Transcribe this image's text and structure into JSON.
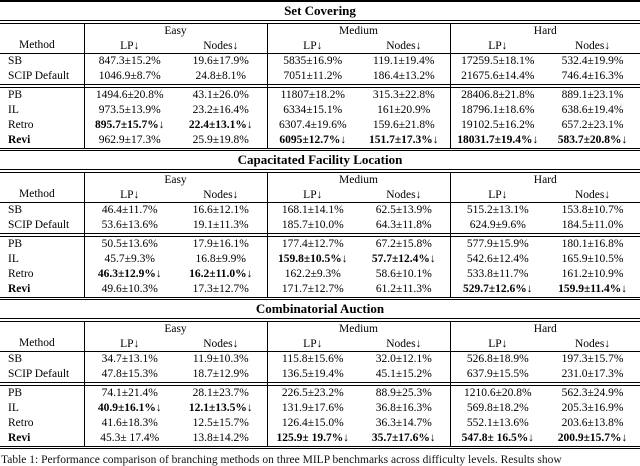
{
  "header": {
    "method": "Method",
    "groups": [
      "Easy",
      "Medium",
      "Hard"
    ],
    "lp": "LP↓",
    "nodes": "Nodes↓"
  },
  "caption": "Table 1: Performance comparison of branching methods on three MILP benchmarks across difficulty levels. Results show",
  "sections": [
    {
      "title": "Set Covering",
      "rows": [
        {
          "method": "SB",
          "cells": [
            "847.3±15.2%",
            "19.6±17.9%",
            "5835±16.9%",
            "119.1±19.4%",
            "17259.5±18.1%",
            "532.4±19.9%"
          ]
        },
        {
          "method": "SCIP Default",
          "cells": [
            "1046.9±8.7%",
            "24.8±8.1%",
            "7051±11.2%",
            "186.4±13.2%",
            "21675.6±14.4%",
            "746.4±16.3%"
          ]
        },
        {
          "method": "PB",
          "cells": [
            "1494.6±20.8%",
            "43.1±26.0%",
            "11807±18.2%",
            "315.3±22.8%",
            "28406.8±21.8%",
            "889.1±23.1%"
          ]
        },
        {
          "method": "IL",
          "cells": [
            "973.5±13.9%",
            "23.2±16.4%",
            "6334±15.1%",
            "161±20.9%",
            "18796.1±18.6%",
            "638.6±19.4%"
          ]
        },
        {
          "method": "Retro",
          "cells": [
            "895.7±15.7%↓",
            "22.4±13.1%↓",
            "6307.4±19.6%",
            "159.6±21.8%",
            "19102.5±16.2%",
            "657.2±23.1%"
          ]
        },
        {
          "method": "Revi",
          "cells": [
            "962.9±17.3%",
            "25.9±19.8%",
            "6095±12.7%↓",
            "151.7±17.3%↓",
            "18031.7±19.4%↓",
            "583.7±20.8%↓"
          ]
        }
      ]
    },
    {
      "title": "Capacitated Facility Location",
      "rows": [
        {
          "method": "SB",
          "cells": [
            "46.4±11.7%",
            "16.6±12.1%",
            "168.1±14.1%",
            "62.5±13.9%",
            "515.2±13.1%",
            "153.8±10.7%"
          ]
        },
        {
          "method": "SCIP Default",
          "cells": [
            "53.6±13.6%",
            "19.1±11.3%",
            "185.7±10.0%",
            "64.3±11.8%",
            "624.9±9.6%",
            "184.5±11.0%"
          ]
        },
        {
          "method": "PB",
          "cells": [
            "50.5±13.6%",
            "17.9±16.1%",
            "177.4±12.7%",
            "67.2±15.8%",
            "577.9±15.9%",
            "180.1±16.8%"
          ]
        },
        {
          "method": "IL",
          "cells": [
            "45.7±9.3%",
            "16.8±9.9%",
            "159.8±10.5%↓",
            "57.7±12.4%↓",
            "542.6±12.4%",
            "165.9±10.5%"
          ]
        },
        {
          "method": "Retro",
          "cells": [
            "46.3±12.9%↓",
            "16.2±11.0%↓",
            "162.2±9.3%",
            "58.6±10.1%",
            "533.8±11.7%",
            "161.2±10.9%"
          ]
        },
        {
          "method": "Revi",
          "cells": [
            "49.6±10.3%",
            "17.3±12.7%",
            "171.7±12.7%",
            "61.2±11.3%",
            "529.7±12.6%↓",
            "159.9±11.4%↓"
          ]
        }
      ]
    },
    {
      "title": "Combinatorial Auction",
      "rows": [
        {
          "method": "SB",
          "cells": [
            "34.7±13.1%",
            "11.9±10.3%",
            "115.8±15.6%",
            "32.0±12.1%",
            "526.8±18.9%",
            "197.3±15.7%"
          ]
        },
        {
          "method": "SCIP Default",
          "cells": [
            "47.8±15.3%",
            "18.7±12.9%",
            "136.5±19.4%",
            "45.1±15.2%",
            "637.9±15.5%",
            "231.0±17.3%"
          ]
        },
        {
          "method": "PB",
          "cells": [
            "74.1±21.4%",
            "28.1±23.7%",
            "226.5±23.2%",
            "88.9±25.3%",
            "1210.6±20.8%",
            "562.3±24.9%"
          ]
        },
        {
          "method": "IL",
          "cells": [
            "40.9±16.1%↓",
            "12.1±13.5%↓",
            "131.9±17.6%",
            "36.8±16.3%",
            "569.8±18.2%",
            "205.3±16.9%"
          ]
        },
        {
          "method": "Retro",
          "cells": [
            "41.6±18.3%",
            "12.5±15.7%",
            "126.4±15.0%",
            "36.3±14.7%",
            "552.1±13.6%",
            "203.6±13.8%"
          ]
        },
        {
          "method": "Revi",
          "cells": [
            "45.3± 17.4%",
            "13.8±14.2%",
            "125.9± 19.7%↓",
            "35.7±17.6%↓",
            "547.8± 16.5%↓",
            "200.9±15.7%↓"
          ]
        }
      ]
    }
  ]
}
